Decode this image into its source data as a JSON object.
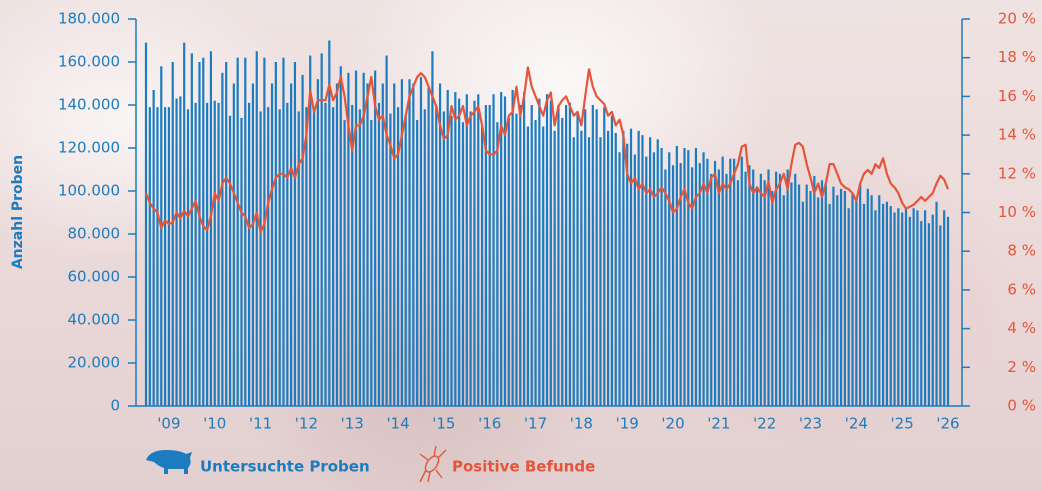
{
  "chart_data": {
    "type": "bar",
    "y_label": "Anzahl Proben",
    "categories": [
      null,
      null,
      null,
      null,
      null,
      null,
      "'09",
      null,
      null,
      null,
      null,
      null,
      null,
      null,
      null,
      null,
      null,
      null,
      "'10",
      null,
      null,
      null,
      null,
      null,
      null,
      null,
      null,
      null,
      null,
      null,
      "'11",
      null,
      null,
      null,
      null,
      null,
      null,
      null,
      null,
      null,
      null,
      null,
      "'12",
      null,
      null,
      null,
      null,
      null,
      null,
      null,
      null,
      null,
      null,
      null,
      "'13",
      null,
      null,
      null,
      null,
      null,
      null,
      null,
      null,
      null,
      null,
      null,
      "'14",
      null,
      null,
      null,
      null,
      null,
      null,
      null,
      null,
      null,
      null,
      null,
      "'15",
      null,
      null,
      null,
      null,
      null,
      null,
      null,
      null,
      null,
      null,
      null,
      "'16",
      null,
      null,
      null,
      null,
      null,
      null,
      null,
      null,
      null,
      null,
      null,
      "'17",
      null,
      null,
      null,
      null,
      null,
      null,
      null,
      null,
      null,
      null,
      null,
      "'18",
      null,
      null,
      null,
      null,
      null,
      null,
      null,
      null,
      null,
      null,
      null,
      "'19",
      null,
      null,
      null,
      null,
      null,
      null,
      null,
      null,
      null,
      null,
      null,
      "'20",
      null,
      null,
      null,
      null,
      null,
      null,
      null,
      null,
      null,
      null,
      null,
      "'21",
      null,
      null,
      null,
      null,
      null,
      null,
      null,
      null,
      null,
      null,
      null,
      "'22",
      null,
      null,
      null,
      null,
      null,
      null,
      null,
      null,
      null,
      null,
      null,
      "'23",
      null,
      null,
      null,
      null,
      null,
      null,
      null,
      null,
      null,
      null,
      null,
      "'24",
      null,
      null,
      null,
      null,
      null,
      null,
      null,
      null,
      null,
      null,
      null,
      "'25",
      null,
      null,
      null,
      null,
      null,
      null,
      null,
      null,
      null,
      null,
      null,
      "'26"
    ],
    "series": [
      {
        "name": "Untersuchte Proben",
        "type": "bar",
        "color": "#1d7bc0",
        "values": [
          169000,
          139000,
          147000,
          139000,
          158000,
          139000,
          139000,
          160000,
          143000,
          144000,
          169000,
          138000,
          164000,
          141000,
          160000,
          162000,
          141000,
          165000,
          142000,
          141000,
          155000,
          160000,
          135000,
          150000,
          162000,
          134000,
          162000,
          141000,
          150000,
          165000,
          137000,
          162000,
          139000,
          150000,
          160000,
          138000,
          162000,
          141000,
          150000,
          160000,
          137000,
          154000,
          139000,
          163000,
          138000,
          152000,
          164000,
          141000,
          170000,
          139000,
          150000,
          158000,
          133000,
          155000,
          140000,
          156000,
          138000,
          155000,
          150000,
          133000,
          156000,
          141000,
          150000,
          163000,
          136000,
          150000,
          139000,
          152000,
          135000,
          152000,
          150000,
          133000,
          153000,
          138000,
          148000,
          165000,
          140000,
          150000,
          137000,
          147000,
          135000,
          146000,
          143000,
          132000,
          145000,
          137000,
          142000,
          145000,
          130000,
          140000,
          140000,
          145000,
          132000,
          146000,
          144000,
          134000,
          147000,
          136000,
          140000,
          146000,
          130000,
          140000,
          133000,
          143000,
          130000,
          145000,
          142000,
          128000,
          140000,
          134000,
          140000,
          141000,
          125000,
          137000,
          128000,
          138000,
          125000,
          140000,
          138000,
          125000,
          139000,
          128000,
          135000,
          127000,
          118000,
          128000,
          122000,
          129000,
          117000,
          128000,
          126000,
          116000,
          125000,
          118000,
          124000,
          120000,
          110000,
          118000,
          112000,
          121000,
          113000,
          120000,
          119000,
          111000,
          120000,
          113000,
          118000,
          115000,
          108000,
          114000,
          110000,
          116000,
          108000,
          115000,
          115000,
          105000,
          116000,
          109000,
          112000,
          110000,
          101000,
          108000,
          105000,
          110000,
          100000,
          109000,
          108000,
          98000,
          110000,
          104000,
          108000,
          103000,
          95000,
          103000,
          100000,
          107000,
          97000,
          105000,
          103000,
          94000,
          102000,
          98000,
          101000,
          100000,
          92000,
          99000,
          97000,
          103000,
          94000,
          101000,
          98000,
          91000,
          98000,
          94000,
          95000,
          93000,
          90000,
          92000,
          90000,
          92000,
          88000,
          92000,
          91000,
          86000,
          91000,
          85000,
          89000,
          95000,
          84000,
          91000,
          88000
        ]
      },
      {
        "name": "Positive Befunde",
        "type": "line",
        "axis": "y2",
        "color": "#e5553a",
        "values": [
          11.0,
          10.5,
          10.2,
          10.0,
          9.2,
          9.6,
          9.4,
          9.5,
          10.0,
          9.7,
          10.1,
          9.8,
          10.2,
          10.6,
          9.8,
          9.3,
          9.1,
          9.8,
          11.0,
          10.6,
          11.5,
          11.8,
          11.5,
          11.0,
          10.5,
          10.0,
          9.8,
          9.2,
          9.4,
          10.0,
          9.0,
          9.4,
          10.5,
          11.2,
          11.8,
          12.0,
          12.0,
          11.8,
          12.3,
          11.8,
          12.5,
          12.8,
          14.0,
          16.3,
          15.2,
          15.8,
          15.8,
          15.8,
          16.6,
          15.8,
          16.2,
          17.0,
          16.0,
          14.5,
          13.2,
          14.5,
          14.5,
          15.0,
          16.0,
          17.0,
          15.5,
          14.8,
          15.0,
          14.0,
          13.5,
          12.8,
          13.0,
          14.0,
          15.0,
          16.0,
          16.5,
          17.0,
          17.2,
          17.0,
          16.5,
          16.0,
          15.5,
          14.5,
          13.8,
          14.0,
          15.5,
          14.8,
          15.0,
          15.5,
          14.5,
          15.0,
          15.2,
          15.5,
          14.5,
          13.2,
          13.0,
          13.0,
          13.2,
          14.5,
          14.0,
          15.0,
          15.2,
          16.5,
          15.0,
          16.0,
          17.5,
          16.5,
          16.0,
          15.5,
          15.0,
          15.8,
          16.2,
          14.5,
          15.5,
          15.8,
          16.0,
          15.5,
          15.0,
          15.2,
          14.5,
          16.0,
          17.4,
          16.5,
          16.0,
          15.8,
          15.6,
          15.0,
          15.2,
          14.5,
          14.8,
          14.0,
          12.0,
          11.5,
          11.8,
          11.2,
          11.5,
          11.0,
          11.2,
          10.8,
          11.0,
          11.3,
          11.0,
          10.6,
          10.0,
          10.2,
          10.8,
          11.2,
          10.5,
          10.2,
          10.8,
          11.0,
          11.5,
          11.0,
          11.8,
          12.0,
          11.0,
          11.5,
          11.2,
          11.5,
          12.0,
          12.5,
          13.4,
          13.5,
          11.5,
          11.0,
          11.3,
          11.0,
          10.8,
          11.6,
          10.5,
          11.2,
          11.5,
          12.0,
          11.2,
          12.5,
          13.5,
          13.6,
          13.4,
          12.5,
          11.8,
          11.0,
          11.5,
          10.8,
          11.5,
          12.5,
          12.5,
          12.0,
          11.5,
          11.3,
          11.2,
          11.0,
          10.6,
          11.5,
          12.0,
          12.2,
          12.0,
          12.5,
          12.3,
          12.8,
          12.0,
          11.5,
          11.3,
          11.0,
          10.5,
          10.2,
          10.3,
          10.4,
          10.6,
          10.8,
          10.6,
          10.8,
          11.0,
          11.5,
          11.9,
          11.7,
          11.2
        ]
      }
    ],
    "ylim": [
      0,
      180000
    ],
    "yticks": [
      0,
      {
        "value": 20000,
        "label": "20.000"
      },
      {
        "value": 40000,
        "label": "40.000"
      },
      {
        "value": 60000,
        "label": "60.000"
      },
      {
        "value": 80000,
        "label": "80.000"
      },
      {
        "value": 100000,
        "label": "100.000"
      },
      {
        "value": 120000,
        "label": "120.000"
      },
      {
        "value": 140000,
        "label": "140.000"
      },
      {
        "value": 160000,
        "label": "160.000"
      },
      {
        "value": 180000,
        "label": "180.000"
      }
    ],
    "y2lim": [
      0,
      20
    ],
    "y2ticks": [
      {
        "value": 0,
        "label": "0 %"
      },
      {
        "value": 2,
        "label": "2 %"
      },
      {
        "value": 4,
        "label": "4 %"
      },
      {
        "value": 6,
        "label": "6 %"
      },
      {
        "value": 8,
        "label": "8 %"
      },
      {
        "value": 10,
        "label": "10 %"
      },
      {
        "value": 12,
        "label": "12 %"
      },
      {
        "value": 14,
        "label": "14 %"
      },
      {
        "value": 16,
        "label": "16 %"
      },
      {
        "value": 18,
        "label": "18 %"
      },
      {
        "value": 20,
        "label": "20 %"
      }
    ],
    "legend": "bottom-left"
  }
}
